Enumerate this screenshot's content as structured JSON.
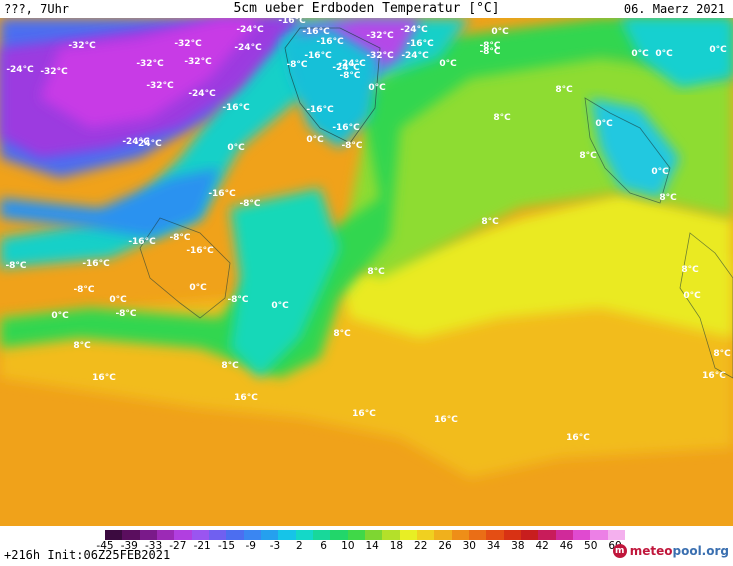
{
  "header": {
    "left": "???, 7Uhr",
    "title": "5cm ueber Erdboden Temperatur [°C]",
    "date": "06. Maerz 2021"
  },
  "footer": {
    "run_info": "+216h  Init:06Z25FEB2021",
    "brand": "meteopool.org"
  },
  "legend": {
    "tick_labels": [
      "-45",
      "-39",
      "-33",
      "-27",
      "-21",
      "-15",
      "-9",
      "-3",
      "2",
      "6",
      "10",
      "14",
      "18",
      "22",
      "26",
      "30",
      "34",
      "38",
      "42",
      "46",
      "50",
      "60"
    ],
    "colors": [
      "#3b0a3f",
      "#5a0e5e",
      "#7a1a8a",
      "#9c2ab6",
      "#b13fe0",
      "#9a55f0",
      "#7060f0",
      "#4c6ef0",
      "#3a86f2",
      "#25a0ee",
      "#16c4e8",
      "#14d8c8",
      "#18d89a",
      "#22d66a",
      "#40d848",
      "#7ed632",
      "#b4e02a",
      "#e8ee24",
      "#f0d020",
      "#f0b01c",
      "#ee8e18",
      "#ea6e16",
      "#e44e14",
      "#d83214",
      "#c81e1e",
      "#c81c5a",
      "#d02a9a",
      "#e04ad0",
      "#ec80e6",
      "#f4b0ee"
    ]
  },
  "map_labels": [
    {
      "text": "-32°C"
    },
    {
      "text": "-32°C"
    },
    {
      "text": "-24°C"
    },
    {
      "text": "-16°C"
    },
    {
      "text": "-32°C"
    },
    {
      "text": "-24°C"
    },
    {
      "text": "-16°C"
    },
    {
      "text": "-16°C"
    },
    {
      "text": "-32°C"
    },
    {
      "text": "-32°C"
    },
    {
      "text": "-24°C"
    },
    {
      "text": "-24°C"
    },
    {
      "text": "-8°C"
    },
    {
      "text": "-32°C"
    },
    {
      "text": "-32°C"
    },
    {
      "text": "-24°C"
    },
    {
      "text": "-16°C"
    },
    {
      "text": "-24°C"
    },
    {
      "text": "-32°C"
    },
    {
      "text": "-24°C"
    },
    {
      "text": "-16°C"
    },
    {
      "text": "-8°C"
    },
    {
      "text": "-24°C"
    },
    {
      "text": "-24°C"
    },
    {
      "text": "0°C"
    },
    {
      "text": "-16°C"
    },
    {
      "text": "-8°C"
    },
    {
      "text": "0°C"
    },
    {
      "text": "-16°C"
    },
    {
      "text": "-16°C"
    },
    {
      "text": "-24°C"
    },
    {
      "text": "0°C"
    },
    {
      "text": "0°C"
    },
    {
      "text": "-8°C"
    },
    {
      "text": "0°C"
    },
    {
      "text": "-8°C"
    },
    {
      "text": "0°C"
    },
    {
      "text": "0°C"
    },
    {
      "text": "0°C"
    },
    {
      "text": "8°C"
    },
    {
      "text": "8°C"
    },
    {
      "text": "0°C"
    },
    {
      "text": "8°C"
    },
    {
      "text": "0°C"
    },
    {
      "text": "8°C"
    },
    {
      "text": "-8°C"
    },
    {
      "text": "-16°C"
    },
    {
      "text": "-16°C"
    },
    {
      "text": "-8°C"
    },
    {
      "text": "-16°C"
    },
    {
      "text": "8°C"
    },
    {
      "text": "8°C"
    },
    {
      "text": "-8°C"
    },
    {
      "text": "-8°C"
    },
    {
      "text": "0°C"
    },
    {
      "text": "-16°C"
    },
    {
      "text": "-8°C"
    },
    {
      "text": "0°C"
    },
    {
      "text": "-8°C"
    },
    {
      "text": "0°C"
    },
    {
      "text": "0°C"
    },
    {
      "text": "8°C"
    },
    {
      "text": "8°C"
    },
    {
      "text": "8°C"
    },
    {
      "text": "8°C"
    },
    {
      "text": "16°C"
    },
    {
      "text": "16°C"
    },
    {
      "text": "16°C"
    },
    {
      "text": "16°C"
    },
    {
      "text": "16°C"
    },
    {
      "text": "16°C"
    },
    {
      "text": "8°C"
    },
    {
      "text": "0°C"
    }
  ]
}
